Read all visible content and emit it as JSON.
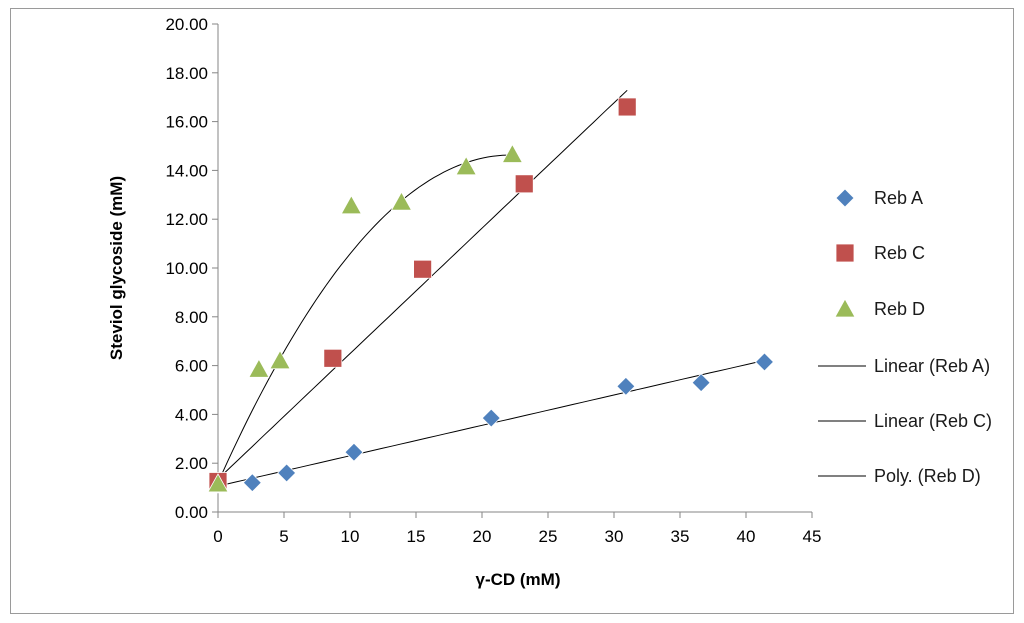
{
  "chart_data": {
    "type": "scatter",
    "xlabel": "γ-CD (mM)",
    "ylabel": "Steviol glycoside (mM)",
    "xlim": [
      0,
      45
    ],
    "ylim": [
      0,
      20
    ],
    "x_ticks": [
      "0",
      "5",
      "10",
      "15",
      "20",
      "25",
      "30",
      "35",
      "40",
      "45"
    ],
    "y_ticks": [
      "0.00",
      "2.00",
      "4.00",
      "6.00",
      "8.00",
      "10.00",
      "12.00",
      "14.00",
      "16.00",
      "18.00",
      "20.00"
    ],
    "series": [
      {
        "name": "Reb A",
        "marker": "diamond",
        "color": "#4f81bd",
        "x": [
          0,
          2.6,
          5.2,
          10.3,
          20.7,
          30.9,
          36.6,
          41.4
        ],
        "y": [
          1.15,
          1.2,
          1.6,
          2.45,
          3.85,
          5.15,
          5.3,
          6.15
        ]
      },
      {
        "name": "Reb C",
        "marker": "square",
        "color": "#c0504d",
        "x": [
          0,
          8.7,
          15.5,
          23.2,
          31.0
        ],
        "y": [
          1.25,
          6.3,
          9.95,
          13.45,
          16.6
        ]
      },
      {
        "name": "Reb D",
        "marker": "triangle",
        "color": "#9bbb59",
        "x": [
          0,
          3.1,
          4.7,
          10.1,
          13.9,
          18.8,
          22.3
        ],
        "y": [
          1.15,
          5.85,
          6.2,
          12.55,
          12.7,
          14.15,
          14.65
        ]
      }
    ],
    "trendlines": [
      {
        "name": "Linear (Reb A)",
        "type": "linear",
        "slope": 0.1245,
        "intercept": 1.06,
        "x_range": [
          0,
          41.4
        ]
      },
      {
        "name": "Linear (Reb C)",
        "type": "linear",
        "slope": 0.514,
        "intercept": 1.35,
        "x_range": [
          0,
          31
        ]
      },
      {
        "name": "Poly. (Reb D)",
        "type": "poly",
        "coeffs": [
          1.2,
          1.211,
          -0.0273
        ],
        "x_range": [
          0,
          22.3
        ]
      }
    ],
    "legend": {
      "position": "right",
      "entries": [
        "Reb A",
        "Reb C",
        "Reb D",
        "Linear (Reb A)",
        "Linear (Reb C)",
        "Poly. (Reb D)"
      ]
    }
  }
}
